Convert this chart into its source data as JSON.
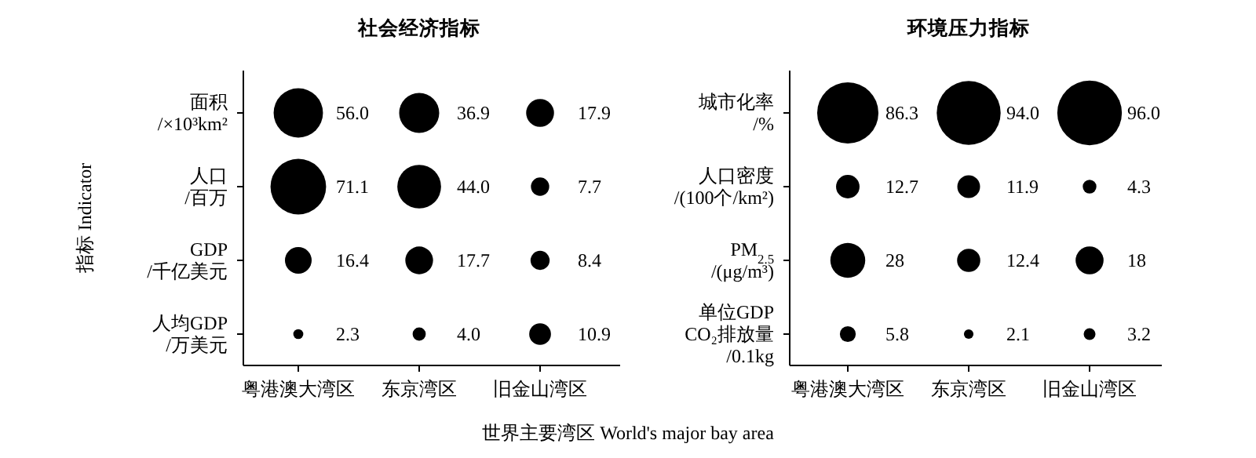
{
  "chart_data": [
    {
      "type": "other",
      "title": "社会经济指标",
      "xlabel": "世界主要湾区 World's major bay area",
      "ylabel": "指标 Indicator",
      "categories": [
        "粤港澳大湾区",
        "东京湾区",
        "旧金山湾区"
      ],
      "series": [
        {
          "name": "面积 /×10³km²",
          "color": "#000000",
          "values": [
            56.0,
            36.9,
            17.9
          ],
          "value_labels": [
            "56.0",
            "36.9",
            "17.9"
          ]
        },
        {
          "name": "人口 /百万",
          "color": "#000000",
          "values": [
            71.1,
            44.0,
            7.7
          ],
          "value_labels": [
            "71.1",
            "44.0",
            "7.7"
          ]
        },
        {
          "name": "GDP /千亿美元",
          "color": "#000000",
          "values": [
            16.4,
            17.7,
            8.4
          ],
          "value_labels": [
            "16.4",
            "17.7",
            "8.4"
          ]
        },
        {
          "name": "人均GDP /万美元",
          "color": "#000000",
          "values": [
            2.3,
            4.0,
            10.9
          ],
          "value_labels": [
            "2.3",
            "4.0",
            "10.9"
          ]
        }
      ]
    },
    {
      "type": "other",
      "title": "环境压力指标",
      "categories": [
        "粤港澳大湾区",
        "东京湾区",
        "旧金山湾区"
      ],
      "series": [
        {
          "name": "城市化率 /%",
          "color": "#000000",
          "values": [
            86.3,
            94.0,
            96.0
          ],
          "value_labels": [
            "86.3",
            "94.0",
            "96.0"
          ]
        },
        {
          "name": "人口密度 /(100个/km²)",
          "color": "#000000",
          "values": [
            12.7,
            11.9,
            4.3
          ],
          "value_labels": [
            "12.7",
            "11.9",
            "4.3"
          ]
        },
        {
          "name": "PM$_{2.5}$ /(μg/m³)",
          "color": "#000000",
          "values": [
            28,
            12.4,
            18
          ],
          "value_labels": [
            "28",
            "12.4",
            "18"
          ]
        },
        {
          "name": "单位GDP CO₂排放量 /0.1kg",
          "color": "#000000",
          "values": [
            5.8,
            2.1,
            3.2
          ],
          "value_labels": [
            "5.8",
            "2.1",
            "3.2"
          ]
        }
      ]
    }
  ]
}
